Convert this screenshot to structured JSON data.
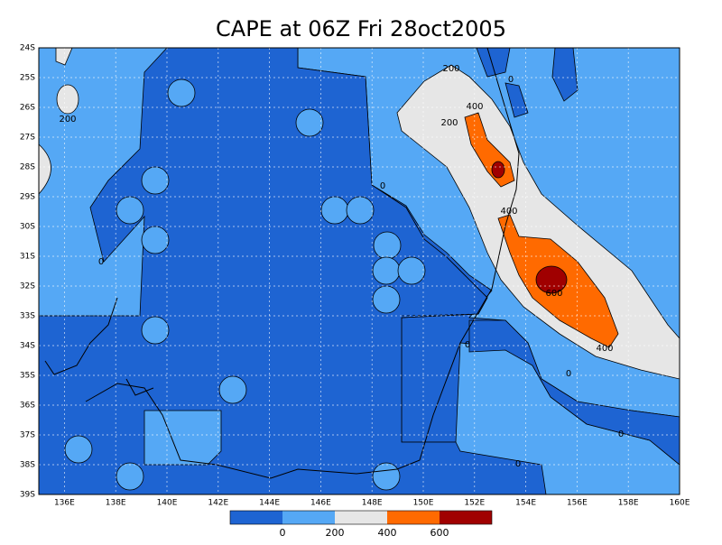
{
  "title": "CAPE at 06Z Fri 28oct2005",
  "lat_labels": [
    "24S",
    "25S",
    "26S",
    "27S",
    "28S",
    "29S",
    "30S",
    "31S",
    "32S",
    "33S",
    "34S",
    "35S",
    "36S",
    "37S",
    "38S",
    "39S"
  ],
  "lon_labels": [
    "136E",
    "138E",
    "140E",
    "142E",
    "144E",
    "146E",
    "148E",
    "150E",
    "152E",
    "154E",
    "156E",
    "158E",
    "160E"
  ],
  "contour_labels": [
    200,
    200,
    200,
    400,
    0,
    0,
    400,
    0,
    600,
    0,
    400,
    0,
    0,
    0
  ],
  "colorbar": {
    "colors": [
      "#1e64d2",
      "#55a8f5",
      "#e6e6e6",
      "#ff6a00",
      "#a00000"
    ],
    "ticks": [
      0,
      200,
      400,
      600
    ]
  }
}
